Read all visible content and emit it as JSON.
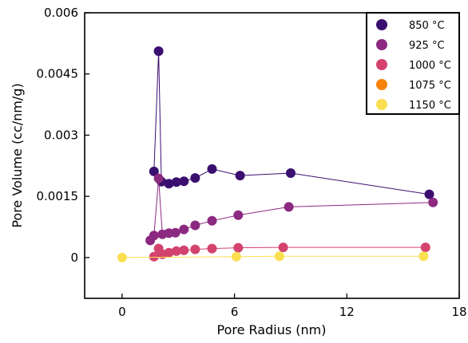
{
  "chart_data": {
    "type": "scatter",
    "title": "",
    "xlabel": "Pore Radius (nm)",
    "ylabel": "Pore Volume (cc/nm/g)",
    "xlim": [
      -2,
      18
    ],
    "ylim": [
      -0.001,
      0.006
    ],
    "xticks": [
      0,
      6,
      12,
      18
    ],
    "xtick_labels": [
      "0",
      "6",
      "12",
      "18"
    ],
    "yticks": [
      0,
      0.0015,
      0.003,
      0.0045,
      0.006
    ],
    "ytick_labels": [
      "0",
      "0.0015",
      "0.003",
      "0.0045",
      "0.006"
    ],
    "grid": false,
    "legend_position": "top-right",
    "series": [
      {
        "name": "850 °C",
        "color": "#3b0f70",
        "points": [
          [
            1.7,
            0.00211
          ],
          [
            1.95,
            0.00506
          ],
          [
            2.1,
            0.00186
          ],
          [
            2.5,
            0.00181
          ],
          [
            2.9,
            0.00185
          ],
          [
            3.3,
            0.00187
          ],
          [
            3.9,
            0.00195
          ],
          [
            4.8,
            0.00217
          ],
          [
            6.3,
            0.00201
          ],
          [
            9.0,
            0.00207
          ],
          [
            16.4,
            0.00155
          ]
        ]
      },
      {
        "name": "925 °C",
        "color": "#8c2981",
        "points": [
          [
            1.5,
            0.00042
          ],
          [
            1.7,
            0.00054
          ],
          [
            1.95,
            0.00194
          ],
          [
            2.15,
            0.00057
          ],
          [
            2.5,
            0.0006
          ],
          [
            2.85,
            0.00061
          ],
          [
            3.3,
            0.00069
          ],
          [
            3.9,
            0.00079
          ],
          [
            4.8,
            0.0009
          ],
          [
            6.2,
            0.00104
          ],
          [
            8.9,
            0.00124
          ],
          [
            16.6,
            0.00135
          ]
        ]
      },
      {
        "name": "1000 °C",
        "color": "#d3436e",
        "points": [
          [
            1.7,
            2e-05
          ],
          [
            1.95,
            0.00022
          ],
          [
            2.15,
            8e-05
          ],
          [
            2.5,
            0.00012
          ],
          [
            2.9,
            0.00016
          ],
          [
            3.3,
            0.00018
          ],
          [
            3.9,
            0.0002
          ],
          [
            4.8,
            0.00022
          ],
          [
            6.2,
            0.00024
          ],
          [
            8.6,
            0.00025
          ],
          [
            16.2,
            0.00025
          ]
        ]
      },
      {
        "name": "1075 °C",
        "color": "#f8820a",
        "points": []
      },
      {
        "name": "1150 °C",
        "color": "#fbdf51",
        "points": [
          [
            0.0,
            0.0
          ],
          [
            6.1,
            2e-05
          ],
          [
            8.4,
            3e-05
          ],
          [
            16.1,
            3e-05
          ]
        ]
      }
    ]
  }
}
